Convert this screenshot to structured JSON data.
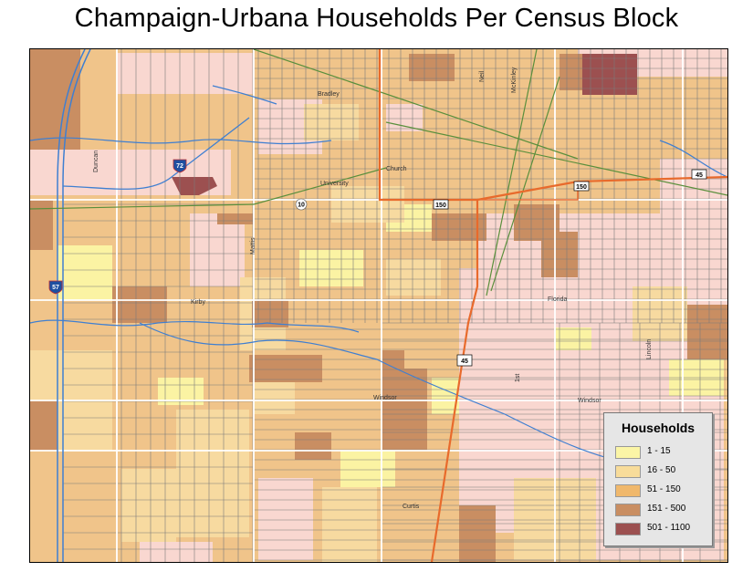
{
  "title": "Champaign-Urbana Households Per Census Block",
  "legend": {
    "title": "Households",
    "items": [
      {
        "label": "1 - 15",
        "color": "#fbf5a6"
      },
      {
        "label": "16 - 50",
        "color": "#f8dc9a"
      },
      {
        "label": "51 - 150",
        "color": "#f0b86c"
      },
      {
        "label": "151 - 500",
        "color": "#c98e62"
      },
      {
        "label": "501 - 1100",
        "color": "#9c5050"
      }
    ]
  },
  "street_labels": [
    "Bradley",
    "Neil",
    "McKinley",
    "Church",
    "University",
    "Duncan",
    "Mattis",
    "Kirby",
    "Florida",
    "Windsor",
    "Windsor",
    "Lincoln",
    "1st",
    "Curtis"
  ],
  "route_shields": [
    "72",
    "57",
    "10",
    "150",
    "150",
    "45",
    "45"
  ],
  "colors": {
    "road": "#e86a2c",
    "water": "#3f7fd1",
    "rail": "#5a8f3c",
    "pink": "#f9d7d0",
    "grid": "#7b7b7b"
  }
}
